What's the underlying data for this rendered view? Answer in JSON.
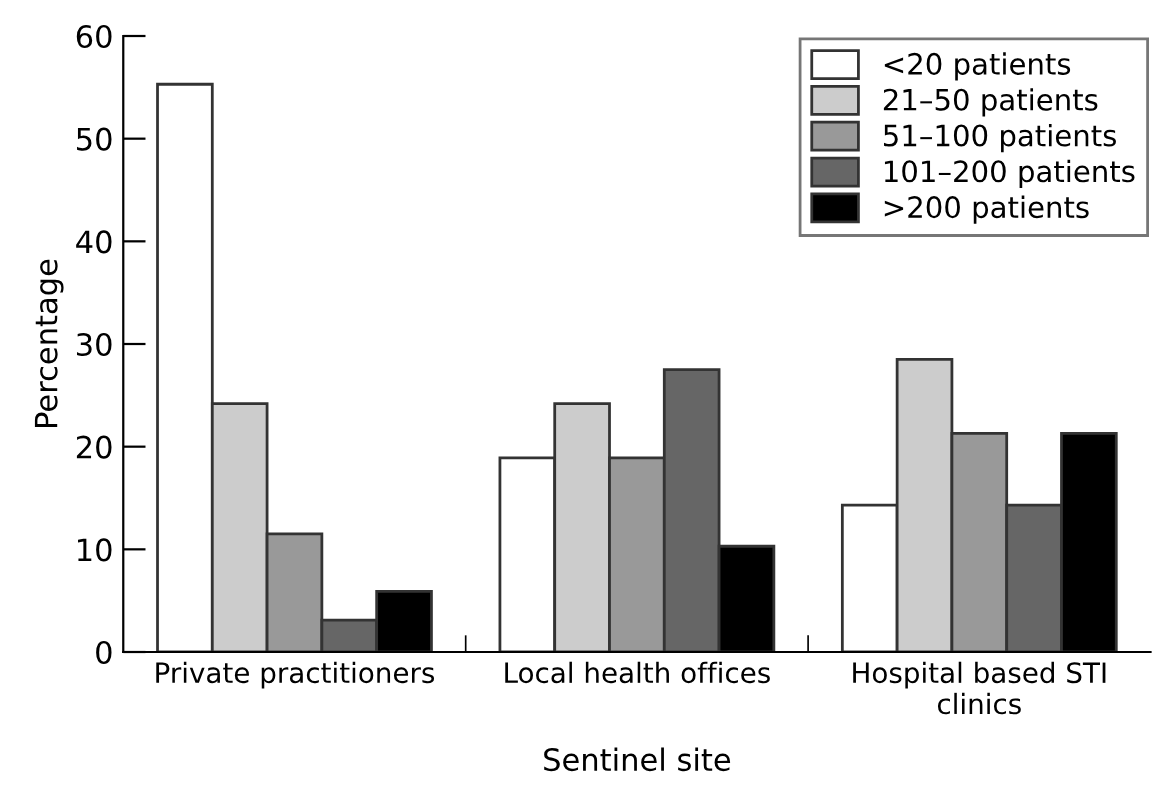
{
  "chart_data": {
    "type": "bar",
    "xlabel": "Sentinel site",
    "ylabel": "Percentage",
    "categories": [
      "Private practitioners",
      "Local health offices",
      "Hospital based STI\nclinics"
    ],
    "series": [
      {
        "name": "<20 patients",
        "color": "#ffffff",
        "values": [
          55.3,
          18.9,
          14.3
        ]
      },
      {
        "name": "21–50 patients",
        "color": "#cccccc",
        "values": [
          24.2,
          24.2,
          28.5
        ]
      },
      {
        "name": "51–100 patients",
        "color": "#999999",
        "values": [
          11.5,
          18.9,
          21.3
        ]
      },
      {
        "name": "101–200 patients",
        "color": "#666666",
        "values": [
          3.1,
          27.5,
          14.3
        ]
      },
      {
        "name": ">200 patients",
        "color": "#000000",
        "values": [
          5.9,
          10.3,
          21.3
        ]
      }
    ],
    "ylim": [
      0,
      60
    ],
    "yticks": [
      0,
      10,
      20,
      30,
      40,
      50,
      60
    ],
    "grid": false,
    "legend": "top right"
  }
}
